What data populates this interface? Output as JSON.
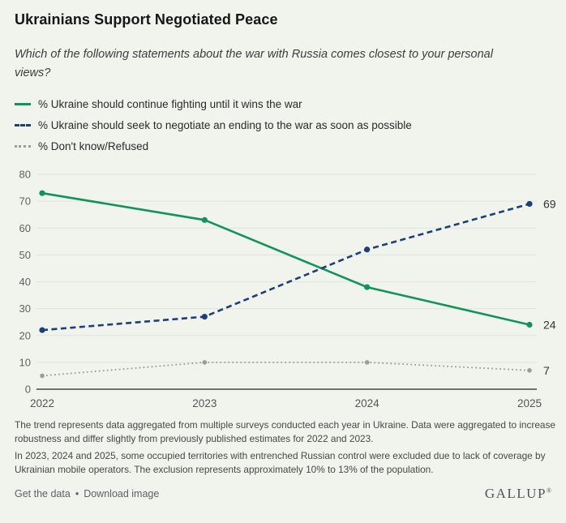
{
  "title": "Ukrainians Support Negotiated Peace",
  "subtitle": "Which of the following statements about the war with Russia comes closest to your personal views?",
  "colors": {
    "background": "#f0f4ed",
    "green": "#12935a",
    "navy": "#1e3e79",
    "gray": "#9b9b9b",
    "grid": "#dee5da",
    "axis": "#454545"
  },
  "legend": [
    {
      "label": "% Ukraine should continue fighting until it wins the war",
      "color": "#12935a",
      "style": "solid"
    },
    {
      "label": "% Ukraine should seek to negotiate an ending to the war as soon as possible",
      "color": "#1e3e79",
      "style": "dashed"
    },
    {
      "label": "% Don't know/Refused",
      "color": "#9b9b9b",
      "style": "dotted"
    }
  ],
  "chart_data": {
    "type": "line",
    "x": [
      "2022",
      "2023",
      "2024",
      "2025"
    ],
    "series": [
      {
        "name": "% Ukraine should continue fighting until it wins the war",
        "values": [
          73,
          63,
          38,
          24
        ],
        "color": "#12935a",
        "dash": "solid",
        "end_label": "24"
      },
      {
        "name": "% Ukraine should seek to negotiate an ending to the war as soon as possible",
        "values": [
          22,
          27,
          52,
          69
        ],
        "color": "#1e3e79",
        "dash": "dashed",
        "end_label": "69"
      },
      {
        "name": "% Don't know/Refused",
        "values": [
          5,
          10,
          10,
          7
        ],
        "color": "#9b9b9b",
        "dash": "dotted",
        "end_label": "7"
      }
    ],
    "ylim": [
      0,
      80
    ],
    "yticks": [
      0,
      10,
      20,
      30,
      40,
      50,
      60,
      70,
      80
    ],
    "grid": true,
    "legend_position": "top"
  },
  "footnotes": [
    "The trend represents data aggregated from multiple surveys conducted each year in Ukraine. Data were aggregated to increase robustness and differ slightly from previously published estimates for 2022 and 2023.",
    "In 2023, 2024 and 2025, some occupied territories with entrenched Russian control were excluded due to lack of coverage by Ukrainian mobile operators. The exclusion represents approximately 10% to 13% of the population."
  ],
  "footer": {
    "links": [
      "Get the data",
      "Download image"
    ],
    "separator": "•",
    "logo": "GALLUP",
    "registered": "®"
  }
}
